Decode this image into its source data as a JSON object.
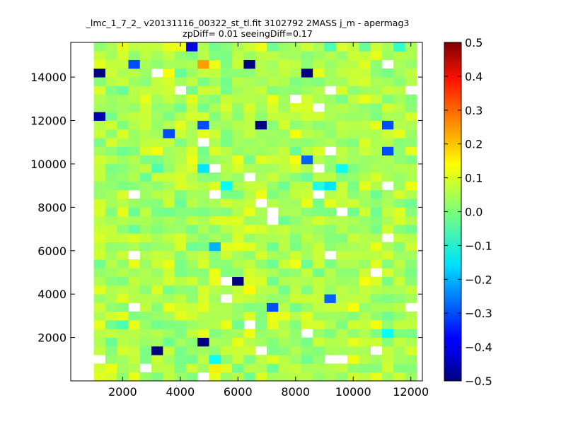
{
  "chart_data": {
    "type": "heatmap",
    "title_line1": "_lmc_1_7_2_ v20131116_00322_st_tl.fit 3102792 2MASS j_m - apermag3",
    "title_line2": "zpDiff= 0.01 seeingDiff=0.17",
    "xlabel": "",
    "ylabel": "",
    "xlim": [
      200,
      12400
    ],
    "ylim": [
      0,
      15600
    ],
    "x_ticks": [
      2000,
      4000,
      6000,
      8000,
      10000,
      12000
    ],
    "y_ticks": [
      2000,
      4000,
      6000,
      8000,
      10000,
      12000,
      14000
    ],
    "x_tick_labels": [
      "2000",
      "4000",
      "6000",
      "8000",
      "10000",
      "12000"
    ],
    "y_tick_labels": [
      "2000",
      "4000",
      "6000",
      "8000",
      "10000",
      "12000",
      "14000"
    ],
    "grid": false,
    "colormap": "jet",
    "colorbar": {
      "min": -0.5,
      "max": 0.5,
      "ticks": [
        0.5,
        0.4,
        0.3,
        0.2,
        0.1,
        0.0,
        -0.1,
        -0.2,
        -0.3,
        -0.4,
        -0.5
      ],
      "tick_labels": [
        "0.5",
        "0.4",
        "0.3",
        "0.2",
        "0.1",
        "0.0",
        "−0.1",
        "−0.2",
        "−0.3",
        "−0.4",
        "−0.5"
      ]
    },
    "grid_x0": 200,
    "grid_y0": 0,
    "cell_size": 400,
    "n_cols": 30,
    "n_rows": 39,
    "cells": [
      [
        1200,
        14000,
        -0.5
      ],
      [
        1200,
        12000,
        -0.45
      ],
      [
        4200,
        15400,
        -0.4
      ],
      [
        6500,
        14400,
        -0.5
      ],
      [
        8500,
        14000,
        -0.5
      ],
      [
        6900,
        11700,
        -0.5
      ],
      [
        2400,
        14400,
        -0.3
      ],
      [
        4600,
        14400,
        0.22
      ],
      [
        4600,
        11600,
        -0.3
      ],
      [
        3600,
        11200,
        -0.3
      ],
      [
        11300,
        11600,
        -0.3
      ],
      [
        11300,
        10400,
        -0.3
      ],
      [
        8200,
        10000,
        -0.28
      ],
      [
        4600,
        9600,
        -0.15
      ],
      [
        9700,
        9600,
        -0.12
      ],
      [
        5500,
        8800,
        -0.12
      ],
      [
        8800,
        8800,
        -0.1
      ],
      [
        9200,
        8800,
        -0.15
      ],
      [
        5100,
        6000,
        -0.2
      ],
      [
        6100,
        4600,
        -0.5
      ],
      [
        9200,
        3600,
        -0.28
      ],
      [
        7200,
        3200,
        -0.3
      ],
      [
        11300,
        2200,
        -0.12
      ],
      [
        4900,
        1600,
        -0.5
      ],
      [
        3300,
        1200,
        -0.5
      ],
      [
        5300,
        800,
        -0.12
      ],
      [
        5300,
        400,
        0.14
      ],
      [
        6500,
        4200,
        0.13
      ],
      [
        10000,
        3200,
        0.12
      ],
      [
        9200,
        15400,
        -0.05
      ],
      [
        11700,
        15400,
        -0.08
      ],
      [
        2100,
        2700,
        -0.05
      ],
      [
        3300,
        9600,
        -0.05
      ]
    ]
  }
}
